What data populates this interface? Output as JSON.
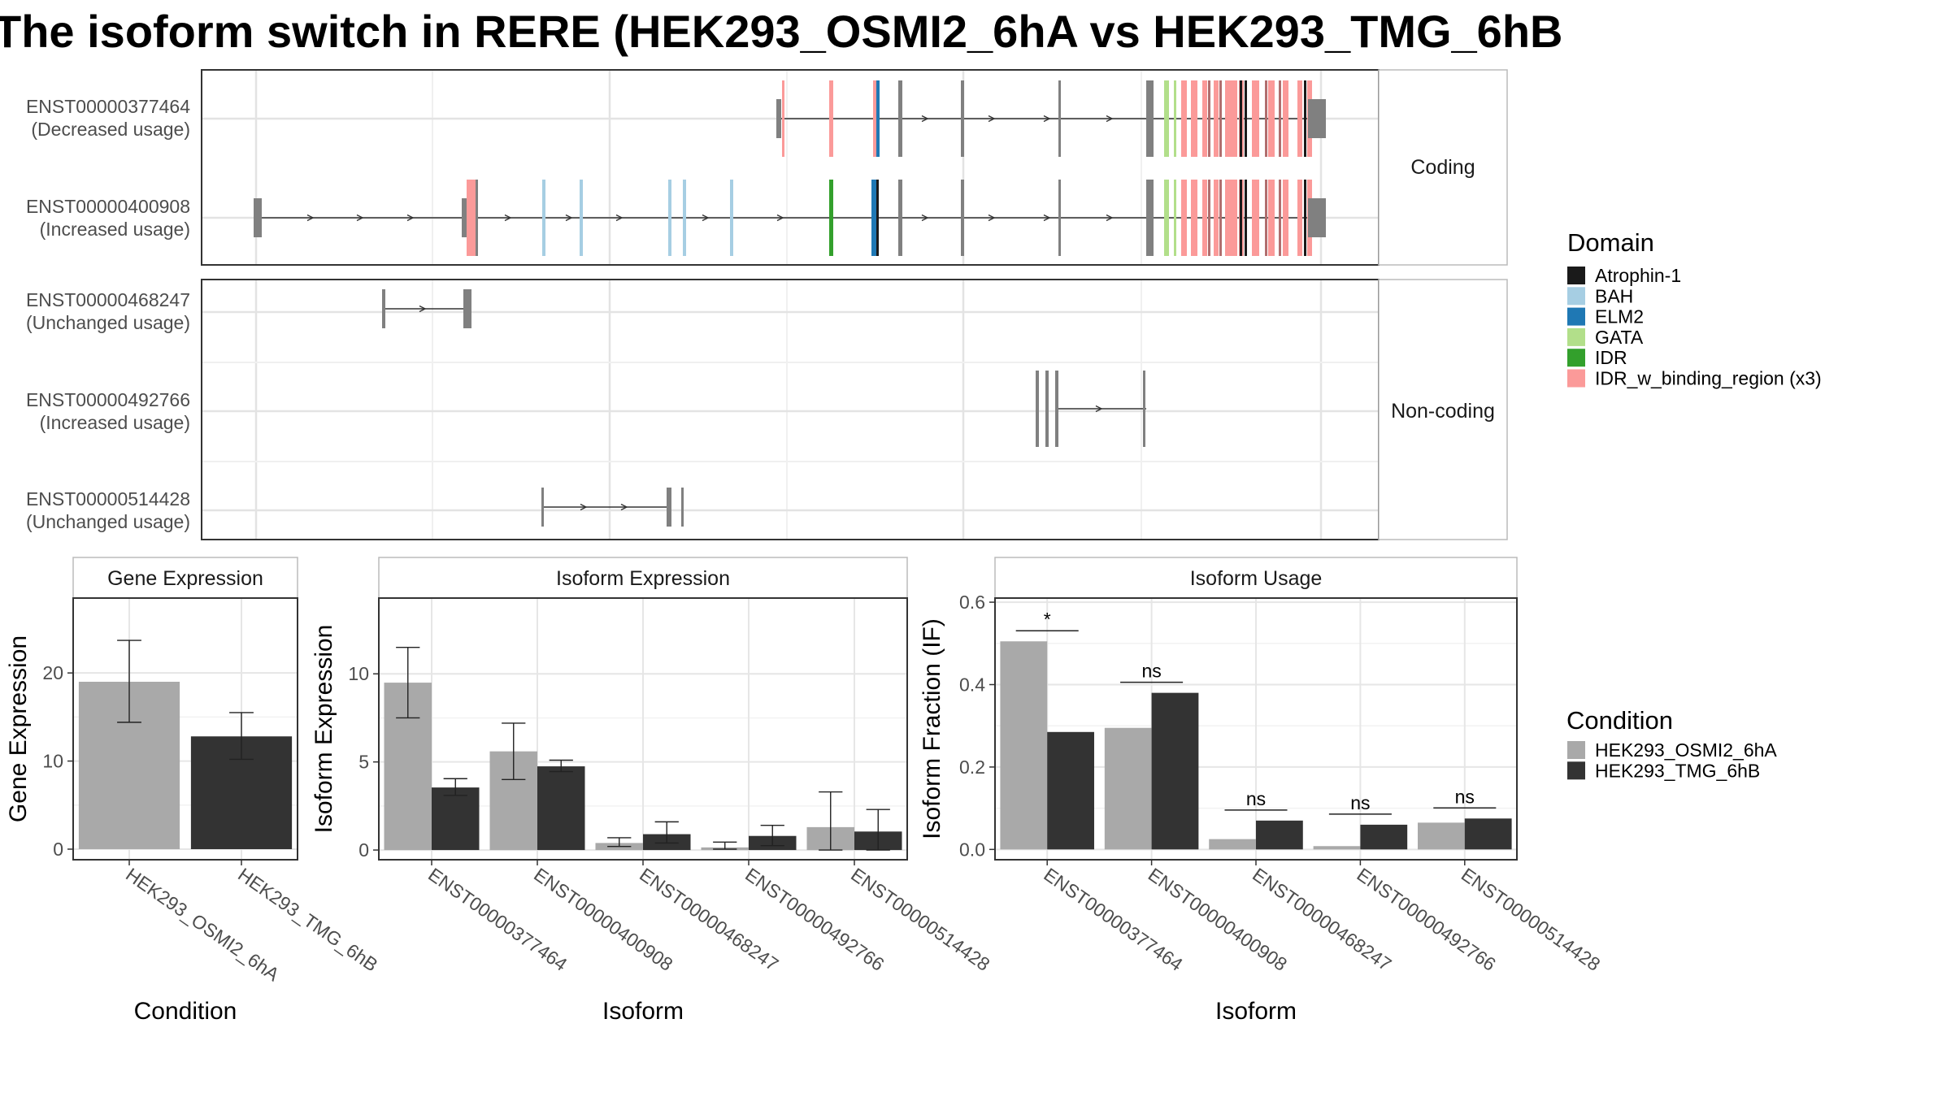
{
  "title": "The isoform switch in RERE (HEK293_OSMI2_6hA vs HEK293_TMG_6hB",
  "colors": {
    "Atrophin-1": "#1a1a1a",
    "BAH": "#a6cee3",
    "ELM2": "#1f78b4",
    "GATA": "#b2df8a",
    "IDR": "#33a02c",
    "IDR_w_binding_region (x3)": "#fb9a99",
    "exon": "#808080",
    "cond_a": "#a9a9a9",
    "cond_b": "#333333"
  },
  "transcript_panel": {
    "facets": [
      {
        "label": "Coding",
        "transcripts": [
          {
            "id": "ENST00000377464",
            "usage": "(Decreased usage)"
          },
          {
            "id": "ENST00000400908",
            "usage": "(Increased usage)"
          }
        ]
      },
      {
        "label": "Non-coding",
        "transcripts": [
          {
            "id": "ENST00000468247",
            "usage": "(Unchanged usage)"
          },
          {
            "id": "ENST00000492766",
            "usage": "(Increased usage)"
          },
          {
            "id": "ENST00000514428",
            "usage": "(Unchanged usage)"
          }
        ]
      }
    ]
  },
  "domain_legend": {
    "title": "Domain",
    "items": [
      "Atrophin-1",
      "BAH",
      "ELM2",
      "GATA",
      "IDR",
      "IDR_w_binding_region (x3)"
    ]
  },
  "condition_legend": {
    "title": "Condition",
    "items": [
      "HEK293_OSMI2_6hA",
      "HEK293_TMG_6hB"
    ]
  },
  "chart_data": [
    {
      "type": "bar",
      "strip": "Gene Expression",
      "xlabel": "Condition",
      "ylabel": "Gene Expression",
      "categories": [
        "HEK293_OSMI2_6hA",
        "HEK293_TMG_6hB"
      ],
      "values": [
        19.0,
        12.8
      ],
      "err_low": [
        14.4,
        10.2
      ],
      "err_high": [
        23.7,
        15.5
      ],
      "yticks": [
        0,
        10,
        20
      ],
      "ylim": [
        -1.2,
        28.5
      ]
    },
    {
      "type": "bar",
      "strip": "Isoform Expression",
      "xlabel": "Isoform",
      "ylabel": "Isoform Expression",
      "categories": [
        "ENST00000377464",
        "ENST00000400908",
        "ENST00000468247",
        "ENST00000492766",
        "ENST00000514428"
      ],
      "series": [
        {
          "name": "HEK293_OSMI2_6hA",
          "values": [
            9.5,
            5.6,
            0.4,
            0.15,
            1.3
          ],
          "err_low": [
            7.5,
            4.0,
            0.2,
            0.05,
            0.0
          ],
          "err_high": [
            11.5,
            7.2,
            0.7,
            0.45,
            3.3
          ]
        },
        {
          "name": "HEK293_TMG_6hB",
          "values": [
            3.55,
            4.75,
            0.9,
            0.8,
            1.05
          ],
          "err_low": [
            3.1,
            4.45,
            0.4,
            0.25,
            0.0
          ],
          "err_high": [
            4.05,
            5.1,
            1.6,
            1.4,
            2.3
          ]
        }
      ],
      "yticks": [
        0,
        5,
        10
      ],
      "ylim": [
        -0.55,
        14.3
      ]
    },
    {
      "type": "bar",
      "strip": "Isoform Usage",
      "xlabel": "Isoform",
      "ylabel": "Isoform Fraction (IF)",
      "categories": [
        "ENST00000377464",
        "ENST00000400908",
        "ENST00000468247",
        "ENST00000492766",
        "ENST00000514428"
      ],
      "series": [
        {
          "name": "HEK293_OSMI2_6hA",
          "values": [
            0.505,
            0.295,
            0.025,
            0.008,
            0.065
          ]
        },
        {
          "name": "HEK293_TMG_6hB",
          "values": [
            0.285,
            0.38,
            0.07,
            0.06,
            0.075
          ]
        }
      ],
      "significance": [
        "*",
        "ns",
        "ns",
        "ns",
        "ns"
      ],
      "yticks": [
        0.0,
        0.2,
        0.4,
        0.6
      ],
      "ytick_labels": [
        "0.0",
        "0.2",
        "0.4",
        "0.6"
      ],
      "ylim": [
        -0.025,
        0.61
      ]
    }
  ]
}
